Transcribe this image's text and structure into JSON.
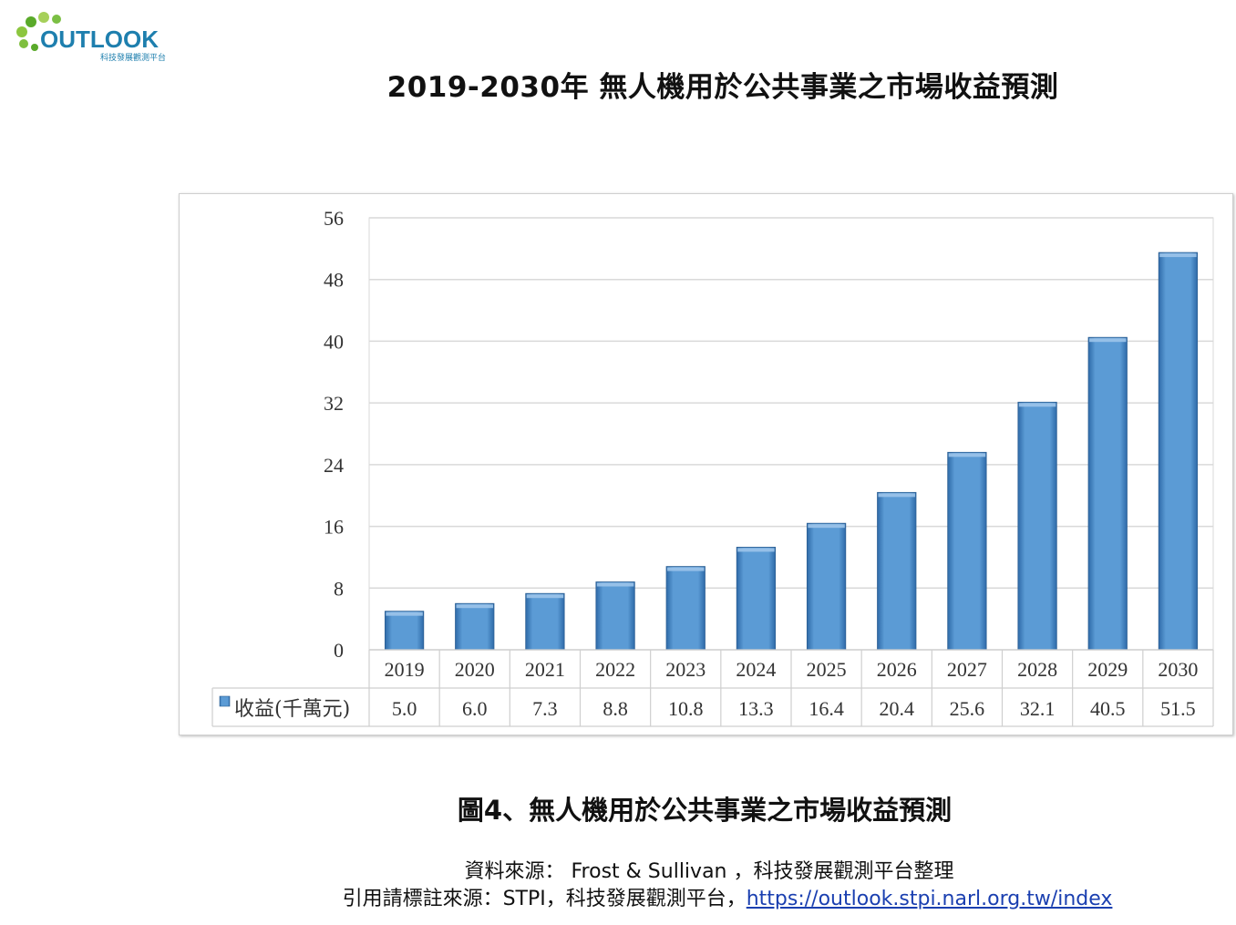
{
  "logo": {
    "brand": "OUTLOOK",
    "tagline": "科技發展觀測平台"
  },
  "page_title": "2019-2030年 無人機用於公共事業之市場收益預測",
  "caption": "圖4、無人機用於公共事業之市場收益預測",
  "source_text": "資料來源： Frost & Sullivan ，科技發展觀測平台整理",
  "cite": {
    "prefix": "引用請標註來源：STPI，科技發展觀測平台，",
    "link_text": "https://outlook.stpi.narl.org.tw/index"
  },
  "colors": {
    "bar": "#5b9bd5",
    "bar_dark": "#2e6aa8",
    "grid": "#d9d9d9",
    "link": "#1a3fb0"
  },
  "chart_data": {
    "type": "bar",
    "categories": [
      "2019",
      "2020",
      "2021",
      "2022",
      "2023",
      "2024",
      "2025",
      "2026",
      "2027",
      "2028",
      "2029",
      "2030"
    ],
    "series": [
      {
        "name": "收益(千萬元)",
        "values": [
          5.0,
          6.0,
          7.3,
          8.8,
          10.8,
          13.3,
          16.4,
          20.4,
          25.6,
          32.1,
          40.5,
          51.5
        ]
      }
    ],
    "value_labels": [
      "5.0",
      "6.0",
      "7.3",
      "8.8",
      "10.8",
      "13.3",
      "16.4",
      "20.4",
      "25.6",
      "32.1",
      "40.5",
      "51.5"
    ],
    "yticks": [
      0,
      8,
      16,
      24,
      32,
      40,
      48,
      56
    ],
    "ylim": [
      0,
      56
    ],
    "grid": true,
    "legend": "data-table"
  }
}
